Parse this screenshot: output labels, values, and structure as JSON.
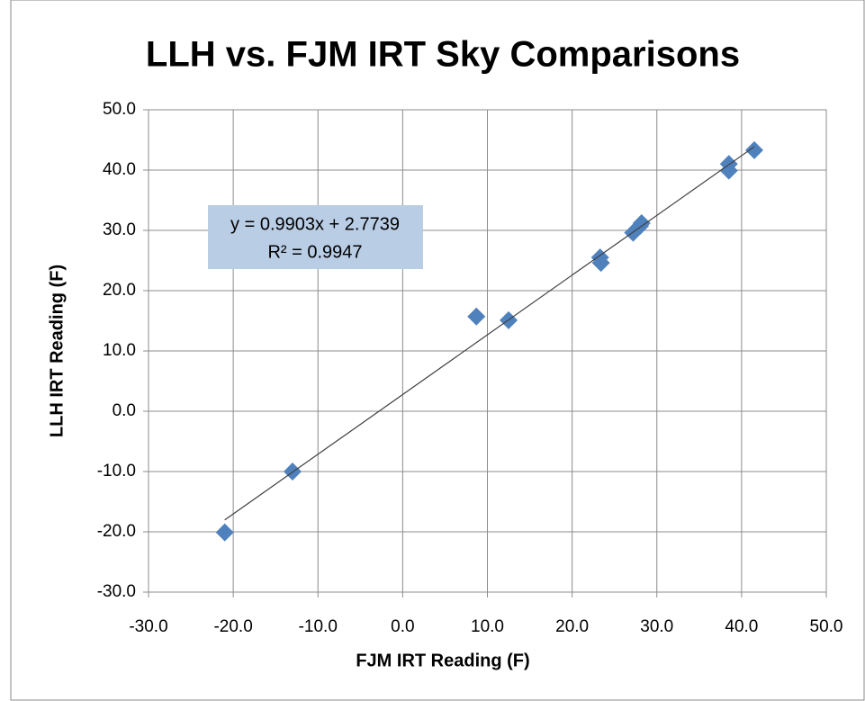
{
  "chart_data": {
    "type": "scatter",
    "title": "LLH vs. FJM IRT Sky Comparisons",
    "xlabel": "FJM IRT Reading (F)",
    "ylabel": "LLH IRT Reading (F)",
    "series": [
      {
        "color": "#4f81bd",
        "x": [
          -21.0,
          -13.0,
          8.7,
          12.5,
          23.3,
          23.4,
          27.2,
          28.0,
          28.2,
          38.5,
          38.5,
          41.5
        ],
        "values": [
          -20.1,
          -10.0,
          15.7,
          15.1,
          25.5,
          24.6,
          29.6,
          30.7,
          31.2,
          41.0,
          39.9,
          43.3
        ]
      }
    ],
    "trendline": {
      "slope": 0.9903,
      "intercept": 2.7739,
      "color": "#404040"
    },
    "annotations": [
      "y = 0.9903x + 2.7739",
      "R² = 0.9947"
    ],
    "xlim": [
      -30,
      50
    ],
    "ylim": [
      -30,
      50
    ],
    "xticks": [
      {
        "value": -30,
        "label": "-30.0"
      },
      {
        "value": -20,
        "label": "-20.0"
      },
      {
        "value": -10,
        "label": "-10.0"
      },
      {
        "value": 0,
        "label": "0.0"
      },
      {
        "value": 10,
        "label": "10.0"
      },
      {
        "value": 20,
        "label": "20.0"
      },
      {
        "value": 30,
        "label": "30.0"
      },
      {
        "value": 40,
        "label": "40.0"
      },
      {
        "value": 50,
        "label": "50.0"
      }
    ],
    "yticks": [
      {
        "value": -30,
        "label": "-30.0"
      },
      {
        "value": -20,
        "label": "-20.0"
      },
      {
        "value": -10,
        "label": "-10.0"
      },
      {
        "value": 0,
        "label": "0.0"
      },
      {
        "value": 10,
        "label": "10.0"
      },
      {
        "value": 20,
        "label": "20.0"
      },
      {
        "value": 30,
        "label": "30.0"
      },
      {
        "value": 40,
        "label": "40.0"
      },
      {
        "value": 50,
        "label": "50.0"
      }
    ],
    "grid": true
  }
}
